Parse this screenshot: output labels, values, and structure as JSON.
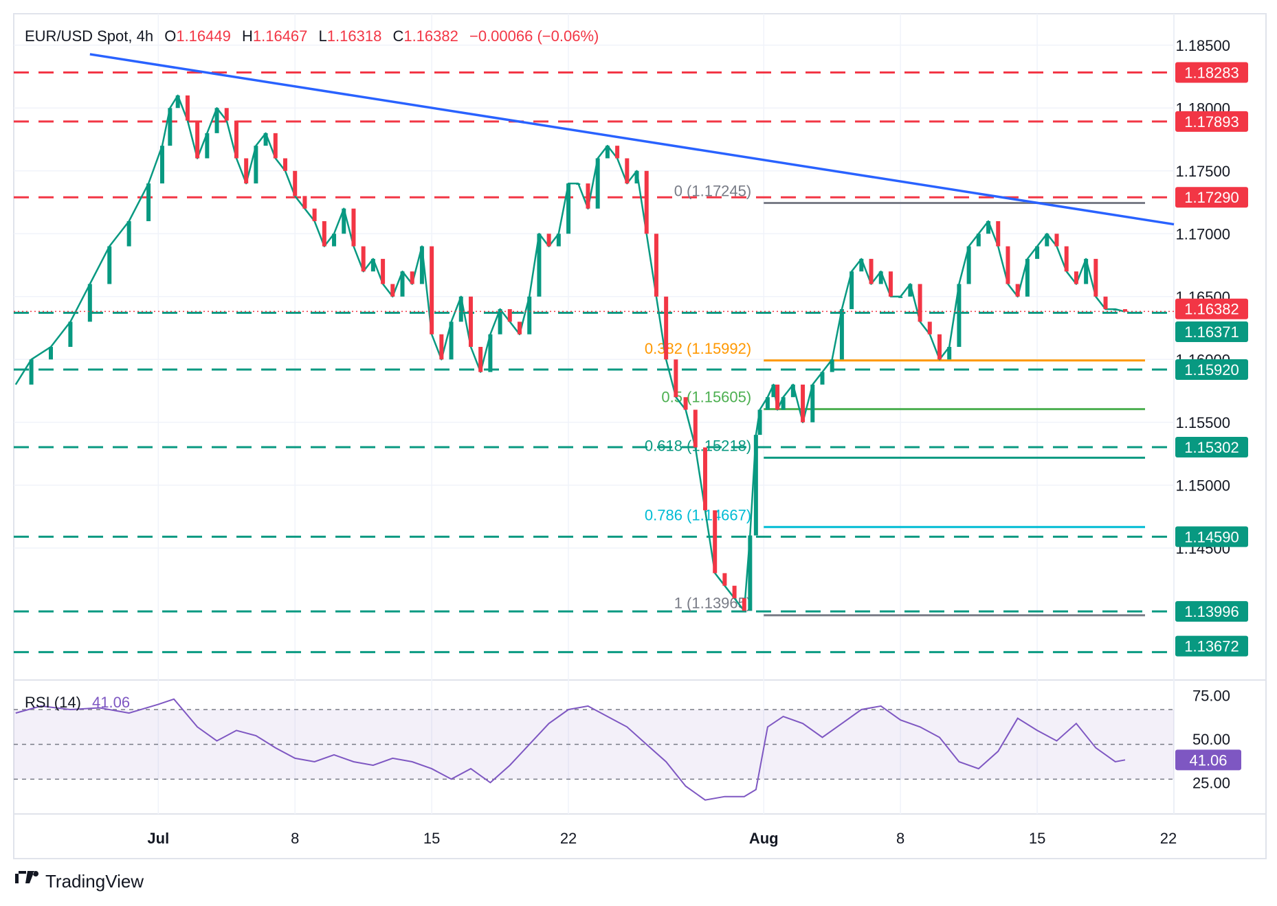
{
  "legend": {
    "symbol": "EUR/USD Spot, 4h",
    "open_label": "O",
    "open": "1.16449",
    "high_label": "H",
    "high": "1.16467",
    "low_label": "L",
    "low": "1.16318",
    "close_label": "C",
    "close": "1.16382",
    "change": "−0.00066 (−0.06%)"
  },
  "rsi": {
    "label": "RSI (14)",
    "value": "41.06",
    "ticks": [
      "75.00",
      "50.00",
      "25.00"
    ]
  },
  "brand": {
    "name": "TradingView"
  },
  "colors": {
    "up": "#089981",
    "down": "#f23645",
    "trendline": "#2962ff",
    "resistance": "#f23645",
    "support": "#089981",
    "rsi": "#7e57c2"
  },
  "chart_data": {
    "type": "candlestick",
    "instrument": "EUR/USD Spot",
    "timeframe": "4h",
    "ylim": [
      1.1345,
      1.1875
    ],
    "price_ticks": [
      "1.18500",
      "1.18000",
      "1.17500",
      "1.17000",
      "1.16500",
      "1.16000",
      "1.15500",
      "1.15000",
      "1.14500"
    ],
    "price_tick_values": [
      1.185,
      1.18,
      1.175,
      1.17,
      1.165,
      1.16,
      1.155,
      1.15,
      1.145
    ],
    "x_ticks": [
      "Jul",
      "8",
      "15",
      "22",
      "Aug",
      "8",
      "15",
      "22"
    ],
    "x_tick_days": [
      30,
      37,
      44,
      51,
      61,
      68,
      75,
      82
    ],
    "xlim_days": [
      22.6,
      82.0
    ],
    "last_price": 1.16382,
    "price_series_days": [
      22.7,
      23.5,
      24.5,
      25.5,
      26.5,
      27.5,
      28.5,
      29.5,
      30.2,
      30.6,
      31.0,
      31.5,
      32.0,
      32.5,
      33.0,
      33.5,
      34.0,
      34.5,
      35.0,
      35.5,
      36.0,
      36.5,
      37.0,
      37.5,
      38.0,
      38.5,
      39.0,
      39.5,
      40.0,
      40.5,
      41.0,
      41.5,
      42.0,
      42.5,
      43.0,
      43.5,
      44.0,
      44.5,
      45.0,
      45.5,
      46.0,
      46.5,
      47.0,
      47.5,
      48.0,
      48.5,
      49.0,
      49.5,
      50.0,
      50.5,
      51.0,
      51.5,
      52.0,
      52.5,
      53.0,
      53.5,
      54.0,
      54.5,
      55.0,
      55.5,
      56.0,
      56.5,
      57.0,
      57.5,
      58.0,
      58.5,
      59.0,
      59.5,
      60.0,
      60.3,
      60.6,
      60.8,
      61.2,
      61.5,
      61.7,
      62.0,
      62.5,
      63.0,
      63.5,
      64.0,
      64.5,
      65.0,
      65.5,
      66.0,
      66.5,
      67.0,
      67.5,
      68.0,
      68.5,
      69.0,
      69.5,
      70.0,
      70.5,
      71.0,
      71.5,
      72.0,
      72.5,
      73.0,
      73.5,
      74.0,
      74.5,
      75.0,
      75.5,
      76.0,
      76.5,
      77.0,
      77.5,
      78.0,
      78.5,
      79.0,
      79.5
    ],
    "price_series": [
      1.158,
      1.16,
      1.161,
      1.163,
      1.166,
      1.169,
      1.171,
      1.174,
      1.177,
      1.18,
      1.181,
      1.179,
      1.176,
      1.178,
      1.18,
      1.179,
      1.176,
      1.174,
      1.177,
      1.178,
      1.176,
      1.175,
      1.173,
      1.172,
      1.171,
      1.169,
      1.17,
      1.172,
      1.169,
      1.167,
      1.168,
      1.166,
      1.165,
      1.167,
      1.166,
      1.169,
      1.162,
      1.16,
      1.163,
      1.165,
      1.161,
      1.159,
      1.162,
      1.164,
      1.163,
      1.162,
      1.165,
      1.17,
      1.169,
      1.17,
      1.174,
      1.174,
      1.172,
      1.176,
      1.177,
      1.176,
      1.174,
      1.175,
      1.17,
      1.165,
      1.16,
      1.157,
      1.156,
      1.153,
      1.148,
      1.143,
      1.142,
      1.141,
      1.14,
      1.146,
      1.154,
      1.156,
      1.157,
      1.158,
      1.156,
      1.157,
      1.158,
      1.155,
      1.158,
      1.159,
      1.16,
      1.164,
      1.167,
      1.168,
      1.166,
      1.167,
      1.165,
      1.165,
      1.166,
      1.163,
      1.162,
      1.16,
      1.161,
      1.166,
      1.169,
      1.17,
      1.171,
      1.169,
      1.166,
      1.165,
      1.168,
      1.169,
      1.17,
      1.169,
      1.167,
      1.166,
      1.168,
      1.165,
      1.164,
      1.164,
      1.1638
    ],
    "horizontal_levels": [
      {
        "label": "1.18283",
        "value": 1.18283,
        "kind": "resistance"
      },
      {
        "label": "1.17893",
        "value": 1.17893,
        "kind": "resistance"
      },
      {
        "label": "1.17290",
        "value": 1.1729,
        "kind": "resistance"
      },
      {
        "label": "1.16371",
        "value": 1.16371,
        "kind": "support"
      },
      {
        "label": "1.15920",
        "value": 1.1592,
        "kind": "support"
      },
      {
        "label": "1.15302",
        "value": 1.15302,
        "kind": "support"
      },
      {
        "label": "1.14590",
        "value": 1.1459,
        "kind": "support"
      },
      {
        "label": "1.13996",
        "value": 1.13996,
        "kind": "support"
      },
      {
        "label": "1.13672",
        "value": 1.13672,
        "kind": "support"
      }
    ],
    "fibonacci": [
      {
        "label": "0 (1.17245)",
        "value": 1.17245,
        "color": "#787b86"
      },
      {
        "label": "0.382 (1.15992)",
        "value": 1.15992,
        "color": "#ff9800"
      },
      {
        "label": "0.5 (1.15605)",
        "value": 1.15605,
        "color": "#4caf50"
      },
      {
        "label": "0.618 (1.15218)",
        "value": 1.15218,
        "color": "#089981"
      },
      {
        "label": "0.786 (1.14667)",
        "value": 1.14667,
        "color": "#00bcd4"
      },
      {
        "label": "1 (1.13965)",
        "value": 1.13965,
        "color": "#787b86"
      }
    ],
    "fib_range_days": [
      61.0,
      89.0
    ],
    "trendline": {
      "start_day": 26.5,
      "start_price": 1.18428,
      "end_day": 82.0,
      "end_price": 1.17075
    },
    "rsi_series_days": [
      22.7,
      24.0,
      25.5,
      27.0,
      28.5,
      30.0,
      30.8,
      32.0,
      33.0,
      34.0,
      35.0,
      36.0,
      37.0,
      38.0,
      39.0,
      40.0,
      41.0,
      42.0,
      43.0,
      44.0,
      45.0,
      46.0,
      47.0,
      48.0,
      49.0,
      50.0,
      51.0,
      52.0,
      53.0,
      54.0,
      55.0,
      56.0,
      57.0,
      58.0,
      59.0,
      60.0,
      60.6,
      61.2,
      62.0,
      63.0,
      64.0,
      65.0,
      66.0,
      67.0,
      68.0,
      69.0,
      70.0,
      71.0,
      72.0,
      73.0,
      74.0,
      75.0,
      76.0,
      77.0,
      78.0,
      79.0,
      79.5
    ],
    "rsi_series": [
      68,
      72,
      70,
      71,
      68,
      73,
      76,
      60,
      52,
      58,
      55,
      48,
      42,
      40,
      44,
      40,
      38,
      42,
      40,
      36,
      30,
      36,
      28,
      38,
      50,
      62,
      70,
      72,
      66,
      60,
      50,
      40,
      26,
      18,
      20,
      20,
      24,
      60,
      66,
      62,
      54,
      62,
      70,
      72,
      64,
      60,
      54,
      40,
      36,
      46,
      65,
      58,
      52,
      62,
      48,
      40,
      41.06
    ],
    "rsi_ylim": [
      10,
      85
    ],
    "rsi_levels": [
      70,
      50,
      30
    ]
  }
}
